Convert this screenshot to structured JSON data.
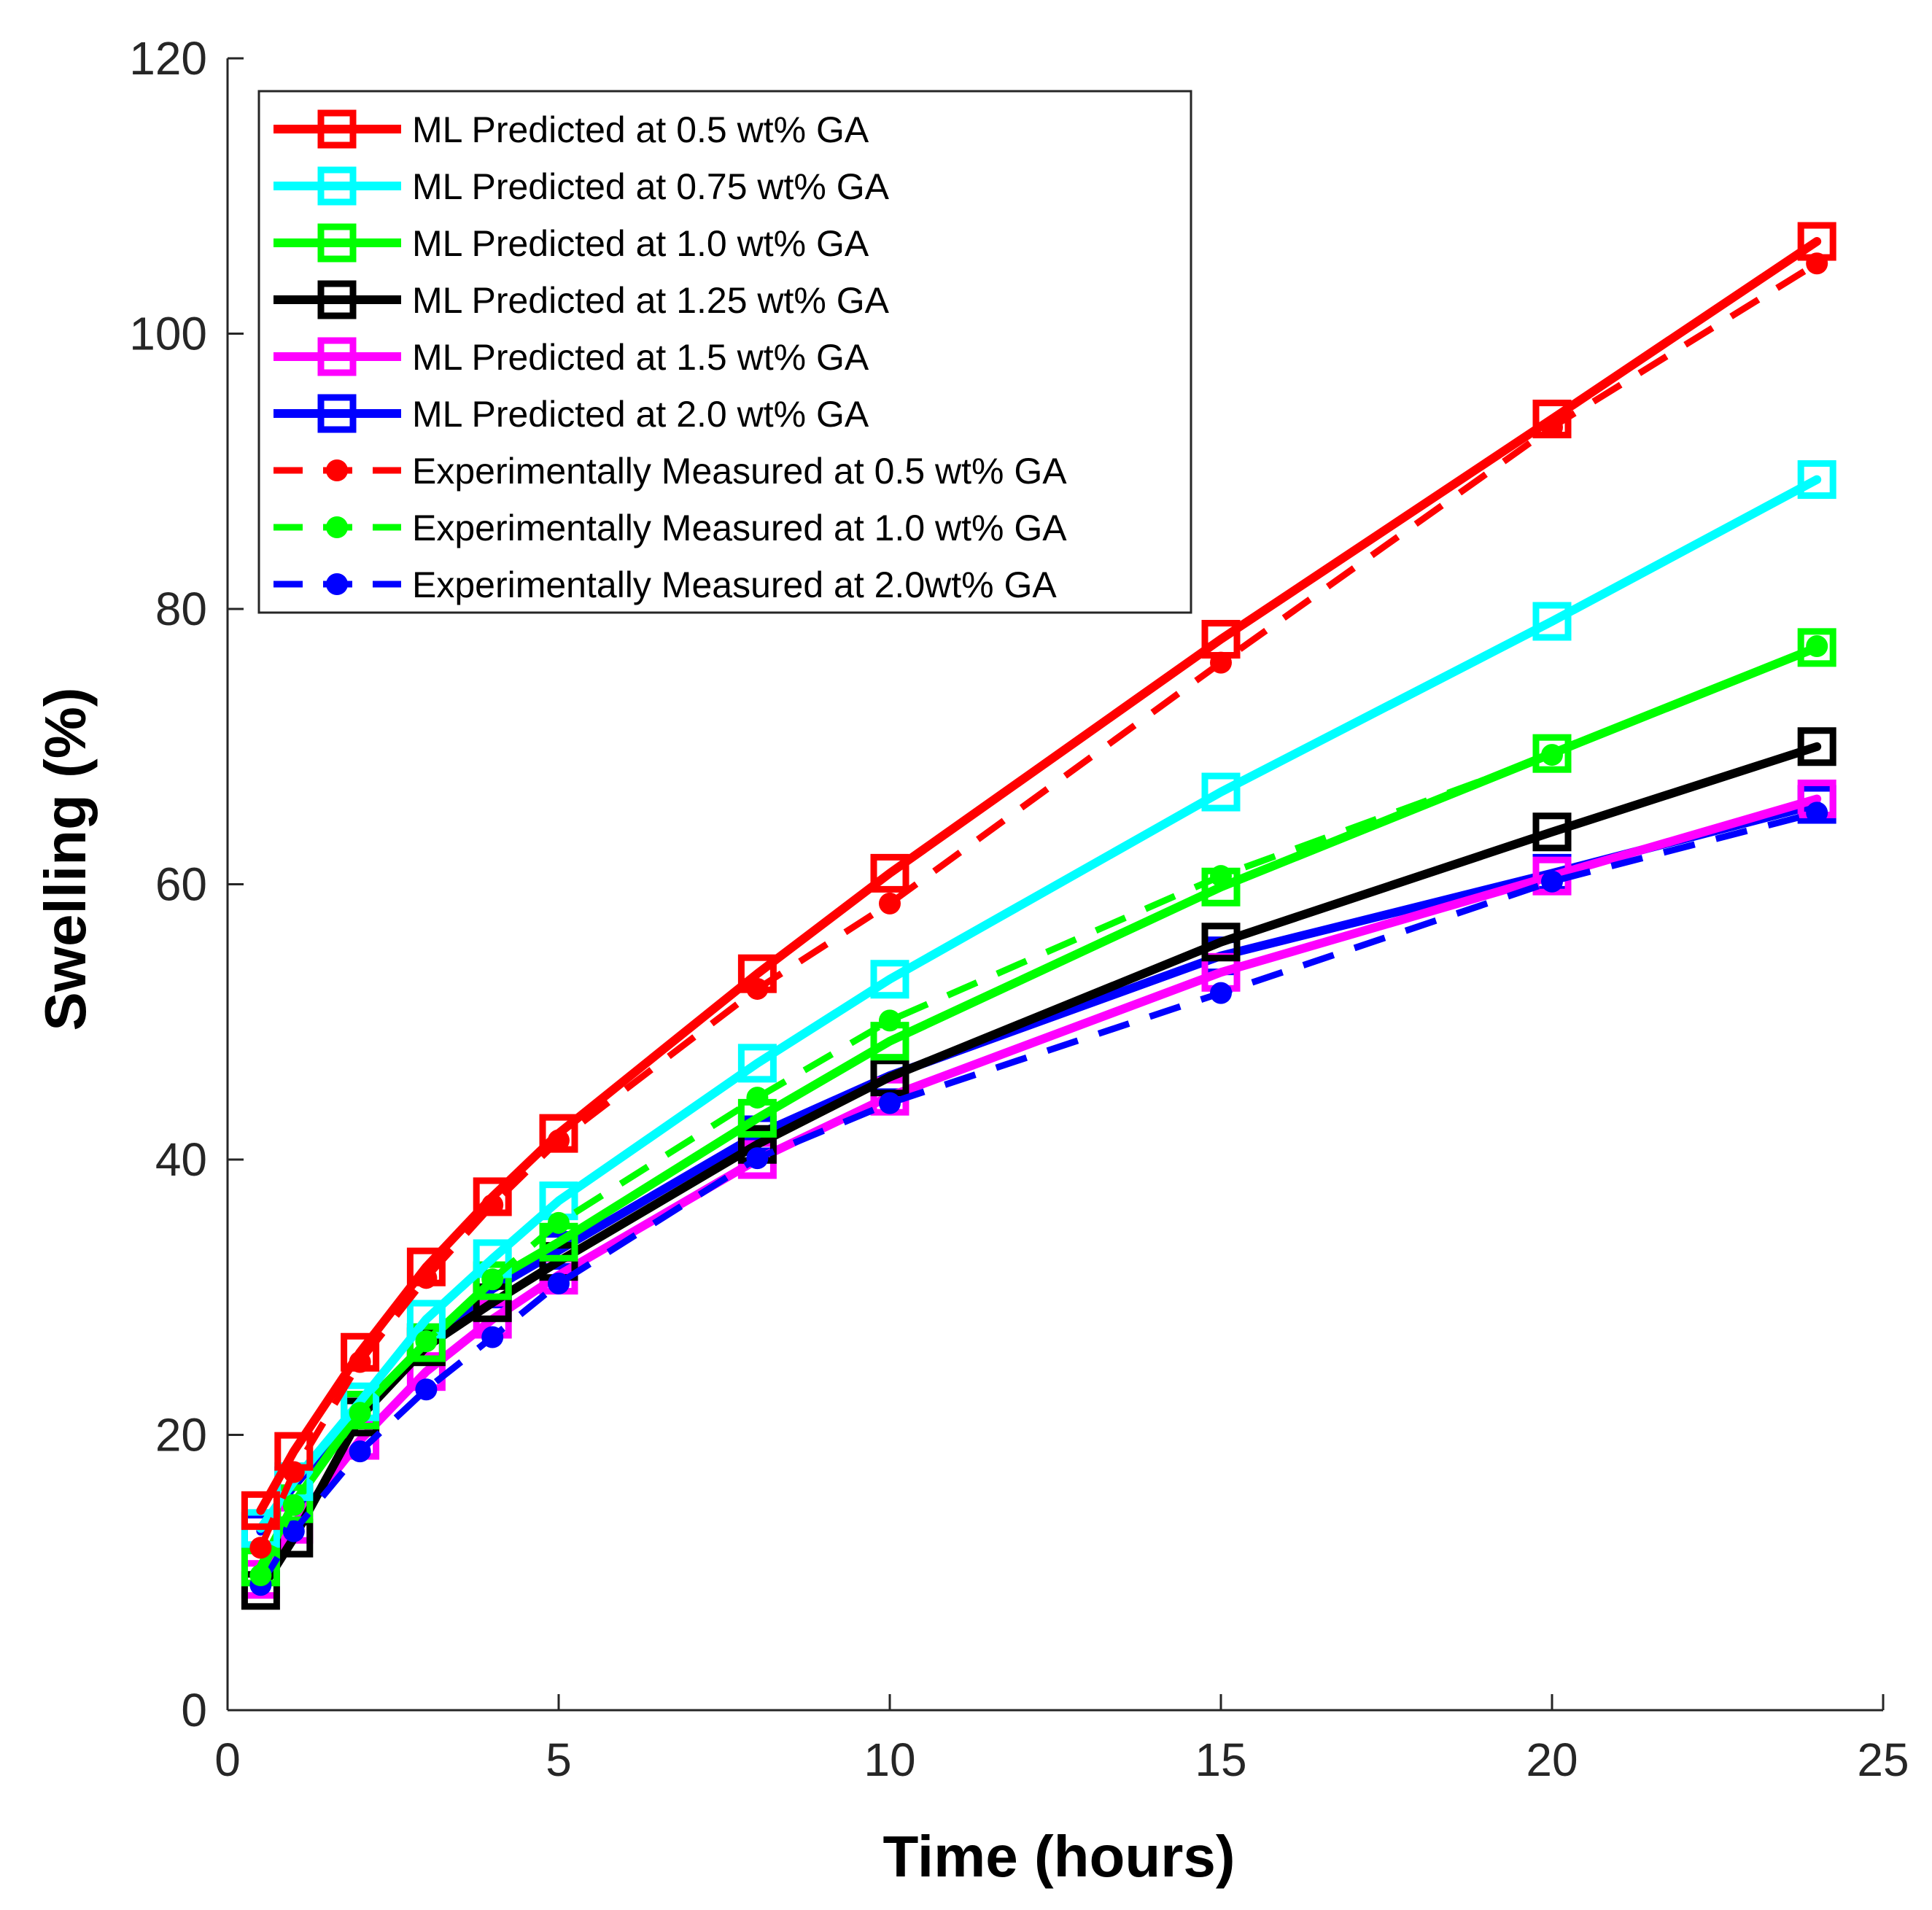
{
  "chart_data": {
    "type": "line",
    "title": "",
    "xlabel": "Time (hours)",
    "ylabel": "Swelling (%)",
    "xlim": [
      0,
      25
    ],
    "ylim": [
      0,
      120
    ],
    "xticks": [
      0,
      5,
      10,
      15,
      20,
      25
    ],
    "yticks": [
      0,
      20,
      40,
      60,
      80,
      100,
      120
    ],
    "x": [
      0.5,
      1,
      2,
      3,
      4,
      5,
      8,
      10,
      15,
      20,
      24
    ],
    "legend_position": "top-left",
    "series": [
      {
        "name": "ML Predicted at 0.5 wt% GA",
        "color": "#ff0000",
        "style": "solid",
        "marker": "square",
        "values": [
          14.5,
          18.8,
          26.0,
          32.2,
          37.3,
          41.9,
          53.5,
          60.8,
          77.8,
          93.8,
          106.7
        ]
      },
      {
        "name": "ML Predicted at 0.75 wt% GA",
        "color": "#00ffff",
        "style": "solid",
        "marker": "square",
        "values": [
          13.2,
          16.6,
          22.4,
          28.4,
          32.8,
          37.0,
          47.0,
          53.1,
          66.7,
          79.1,
          89.4
        ]
      },
      {
        "name": "ML Predicted at 1.0 wt% GA",
        "color": "#00ff00",
        "style": "solid",
        "marker": "square",
        "values": [
          10.4,
          15.0,
          21.8,
          26.7,
          31.2,
          34.0,
          43.0,
          48.6,
          59.8,
          69.5,
          77.2
        ]
      },
      {
        "name": "ML Predicted at 1.25 wt% GA",
        "color": "#000000",
        "style": "solid",
        "marker": "square",
        "values": [
          8.7,
          12.5,
          21.3,
          26.4,
          29.6,
          32.6,
          41.1,
          46.0,
          55.8,
          63.8,
          70.0
        ]
      },
      {
        "name": "ML Predicted at 1.5 wt% GA",
        "color": "#ff00ff",
        "style": "solid",
        "marker": "square",
        "values": [
          9.5,
          13.5,
          19.6,
          24.6,
          28.4,
          31.6,
          40.0,
          44.6,
          53.6,
          60.6,
          66.2
        ]
      },
      {
        "name": "ML Predicted at 2.0 wt% GA",
        "color": "#0000ff",
        "style": "solid",
        "marker": "square",
        "values": [
          13.0,
          16.3,
          21.8,
          26.7,
          30.6,
          33.4,
          41.8,
          46.1,
          54.8,
          60.8,
          65.8
        ]
      },
      {
        "name": "Experimentally Measured at 0.5 wt% GA",
        "color": "#ff0000",
        "style": "dashed",
        "marker": "dot",
        "values": [
          11.8,
          17.3,
          25.3,
          31.4,
          36.7,
          41.4,
          52.4,
          58.6,
          76.1,
          93.2,
          105.1
        ]
      },
      {
        "name": "Experimentally Measured at 1.0 wt% GA",
        "color": "#00ff00",
        "style": "dashed",
        "marker": "dot",
        "values": [
          9.8,
          14.9,
          21.6,
          26.8,
          31.3,
          35.4,
          44.5,
          50.1,
          60.6,
          69.4,
          77.3
        ]
      },
      {
        "name": "Experimentally Measured at 2.0wt% GA",
        "color": "#0000ff",
        "style": "dashed",
        "marker": "dot",
        "values": [
          9.1,
          13.0,
          18.8,
          23.3,
          27.1,
          31.0,
          40.1,
          44.1,
          52.1,
          60.2,
          65.2
        ]
      }
    ]
  }
}
